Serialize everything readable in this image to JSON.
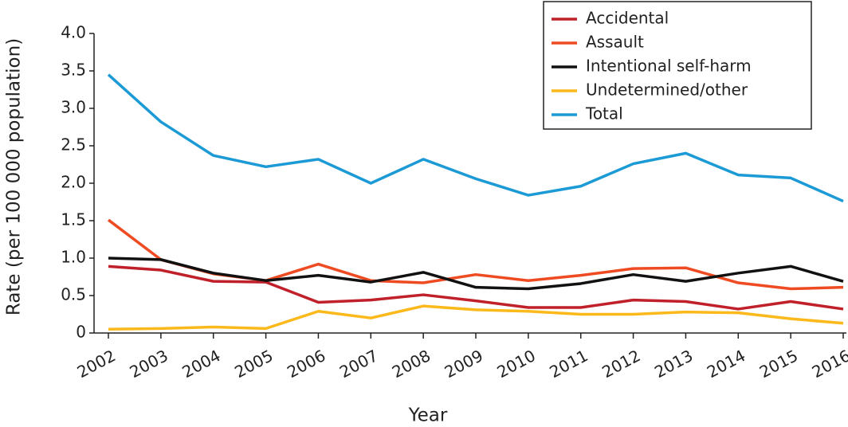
{
  "chart_data": {
    "type": "line",
    "x_label": "Year",
    "y_label": "Rate (per 100 000 population)",
    "categories": [
      "2002",
      "2003",
      "2004",
      "2005",
      "2006",
      "2007",
      "2008",
      "2009",
      "2010",
      "2011",
      "2012",
      "2013",
      "2014",
      "2015",
      "2016"
    ],
    "series": [
      {
        "name": "Accidental",
        "color": "#c0202a",
        "values": [
          0.89,
          0.84,
          0.69,
          0.68,
          0.41,
          0.44,
          0.51,
          0.43,
          0.34,
          0.34,
          0.44,
          0.42,
          0.32,
          0.42,
          0.32
        ]
      },
      {
        "name": "Assault",
        "color": "#ef4b23",
        "values": [
          1.51,
          0.98,
          0.79,
          0.7,
          0.92,
          0.7,
          0.67,
          0.78,
          0.7,
          0.77,
          0.86,
          0.87,
          0.67,
          0.59,
          0.61
        ]
      },
      {
        "name": "Intentional self-harm",
        "color": "#111111",
        "values": [
          1.0,
          0.98,
          0.8,
          0.7,
          0.77,
          0.68,
          0.81,
          0.61,
          0.59,
          0.66,
          0.78,
          0.69,
          0.8,
          0.89,
          0.69
        ]
      },
      {
        "name": "Undetermined/other",
        "color": "#fbb91c",
        "values": [
          0.05,
          0.06,
          0.08,
          0.06,
          0.29,
          0.2,
          0.36,
          0.31,
          0.29,
          0.25,
          0.25,
          0.28,
          0.27,
          0.19,
          0.13
        ]
      },
      {
        "name": "Total",
        "color": "#1c9ad6",
        "values": [
          3.45,
          2.82,
          2.37,
          2.22,
          2.32,
          2.0,
          2.32,
          2.06,
          1.84,
          1.96,
          2.26,
          2.4,
          2.11,
          2.07,
          1.76
        ]
      }
    ],
    "ylim": [
      0,
      4
    ],
    "yticks": [
      0,
      0.5,
      {
        "value": 1,
        "label": "1.0"
      },
      1.5,
      {
        "value": 2,
        "label": "2.0"
      },
      2.5,
      {
        "value": 3,
        "label": "3.0"
      },
      3.5,
      {
        "value": 4,
        "label": "4.0"
      }
    ],
    "grid": false,
    "legend": "upper right"
  }
}
